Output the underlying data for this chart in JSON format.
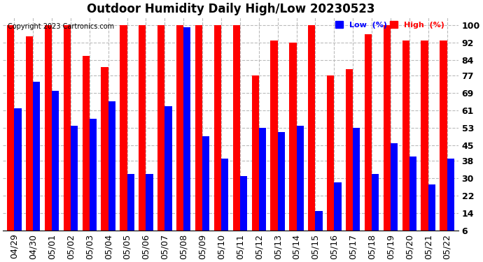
{
  "title": "Outdoor Humidity Daily High/Low 20230523",
  "copyright": "Copyright 2023 Cartronics.com",
  "legend_low": "Low  (%)",
  "legend_high": "High  (%)",
  "dates": [
    "04/29",
    "04/30",
    "05/01",
    "05/02",
    "05/03",
    "05/04",
    "05/05",
    "05/06",
    "05/07",
    "05/08",
    "05/09",
    "05/10",
    "05/11",
    "05/12",
    "05/13",
    "05/14",
    "05/15",
    "05/16",
    "05/17",
    "05/18",
    "05/19",
    "05/20",
    "05/21",
    "05/22"
  ],
  "high_values": [
    100,
    95,
    100,
    100,
    86,
    81,
    100,
    100,
    100,
    100,
    100,
    100,
    100,
    77,
    93,
    92,
    100,
    77,
    80,
    96,
    100,
    93,
    93,
    93
  ],
  "low_values": [
    62,
    74,
    70,
    54,
    57,
    65,
    32,
    32,
    63,
    99,
    49,
    39,
    31,
    53,
    51,
    54,
    15,
    28,
    53,
    32,
    46,
    40,
    27,
    39
  ],
  "yticks": [
    6,
    14,
    22,
    30,
    38,
    45,
    53,
    61,
    69,
    77,
    84,
    92,
    100
  ],
  "bar_color_high": "#FF0000",
  "bar_color_low": "#0000FF",
  "bg_color": "#FFFFFF",
  "grid_color": "#BBBBBB",
  "title_fontsize": 12,
  "tick_fontsize": 9,
  "copyright_fontsize": 7
}
